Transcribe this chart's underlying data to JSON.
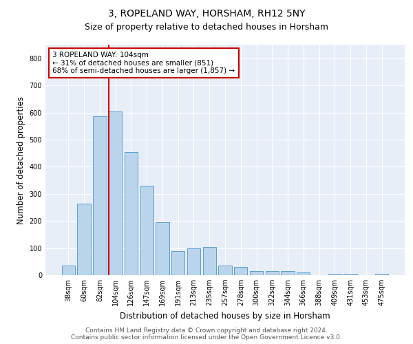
{
  "title": "3, ROPELAND WAY, HORSHAM, RH12 5NY",
  "subtitle": "Size of property relative to detached houses in Horsham",
  "xlabel": "Distribution of detached houses by size in Horsham",
  "ylabel": "Number of detached properties",
  "categories": [
    "38sqm",
    "60sqm",
    "82sqm",
    "104sqm",
    "126sqm",
    "147sqm",
    "169sqm",
    "191sqm",
    "213sqm",
    "235sqm",
    "257sqm",
    "278sqm",
    "300sqm",
    "322sqm",
    "344sqm",
    "366sqm",
    "388sqm",
    "409sqm",
    "431sqm",
    "453sqm",
    "475sqm"
  ],
  "values": [
    35,
    265,
    585,
    605,
    455,
    330,
    195,
    90,
    100,
    105,
    35,
    30,
    15,
    15,
    15,
    10,
    0,
    5,
    5,
    0,
    5
  ],
  "bar_color": "#bad4eb",
  "bar_edge_color": "#5a9fd4",
  "red_line_index": 3,
  "annotation_text": "3 ROPELAND WAY: 104sqm\n← 31% of detached houses are smaller (851)\n68% of semi-detached houses are larger (1,857) →",
  "annotation_box_color": "#ffffff",
  "annotation_box_edge_color": "#cc0000",
  "red_line_color": "#cc0000",
  "ylim": [
    0,
    850
  ],
  "yticks": [
    0,
    100,
    200,
    300,
    400,
    500,
    600,
    700,
    800
  ],
  "background_color": "#e8eef8",
  "footer_line1": "Contains HM Land Registry data © Crown copyright and database right 2024.",
  "footer_line2": "Contains public sector information licensed under the Open Government Licence v3.0.",
  "title_fontsize": 10,
  "subtitle_fontsize": 9,
  "axis_label_fontsize": 8.5,
  "tick_fontsize": 7,
  "annotation_fontsize": 7.5,
  "footer_fontsize": 6.5
}
